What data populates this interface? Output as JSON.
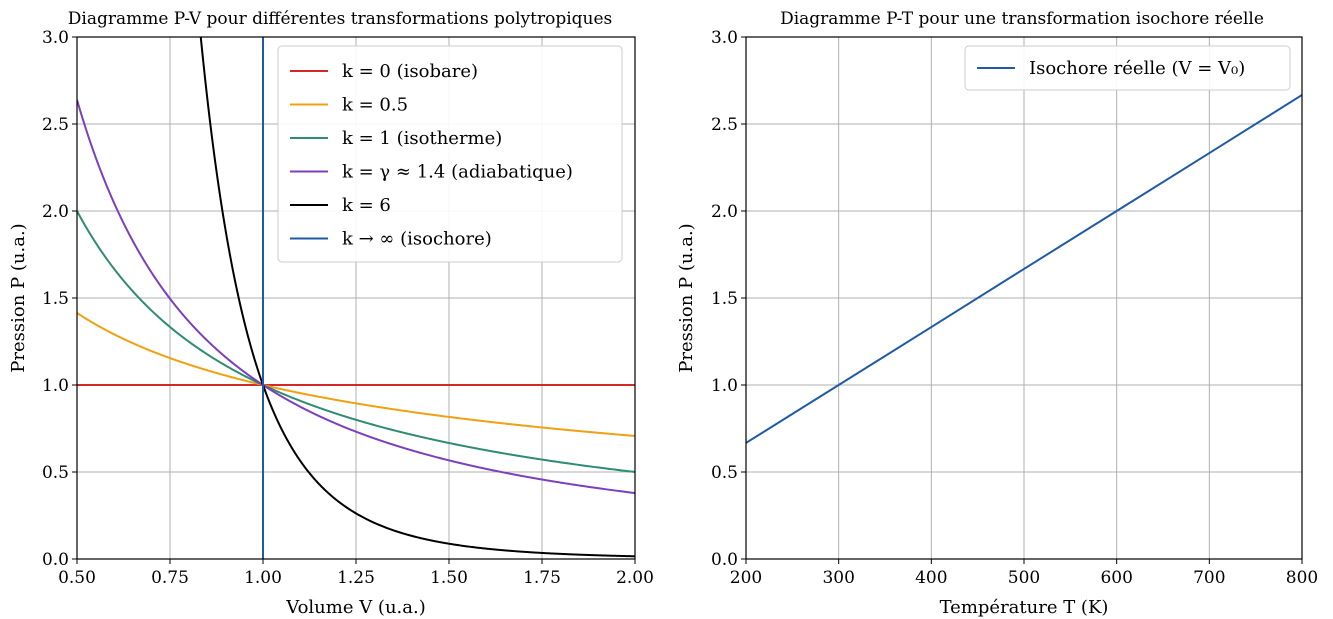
{
  "chart_data": [
    {
      "type": "line",
      "title": "Diagramme P-V pour différentes transformations polytropiques",
      "xlabel": "Volume V (u.a.)",
      "ylabel": "Pression P (u.a.)",
      "xlim": [
        0.5,
        2.0
      ],
      "ylim": [
        0.0,
        3.0
      ],
      "xticks": [
        "0.50",
        "0.75",
        "1.00",
        "1.25",
        "1.50",
        "1.75",
        "2.00"
      ],
      "yticks": [
        "0.0",
        "0.5",
        "1.0",
        "1.5",
        "2.0",
        "2.5",
        "3.0"
      ],
      "grid": true,
      "legend_position": "top-right",
      "reference": {
        "V0": 1.0,
        "P0": 1.0
      },
      "series": [
        {
          "name": "k = 0 (isobare)",
          "k": 0,
          "color": "#d62728",
          "x": [
            0.5,
            0.75,
            1.0,
            1.25,
            1.5,
            1.75,
            2.0
          ],
          "y": [
            1.0,
            1.0,
            1.0,
            1.0,
            1.0,
            1.0,
            1.0
          ]
        },
        {
          "name": "k = 0.5",
          "k": 0.5,
          "color": "#f0a010",
          "x": [
            0.5,
            0.75,
            1.0,
            1.25,
            1.5,
            1.75,
            2.0
          ],
          "y": [
            1.41,
            1.15,
            1.0,
            0.89,
            0.82,
            0.76,
            0.71
          ]
        },
        {
          "name": "k = 1 (isotherme)",
          "k": 1,
          "color": "#2e8b74",
          "x": [
            0.5,
            0.75,
            1.0,
            1.25,
            1.5,
            1.75,
            2.0
          ],
          "y": [
            2.0,
            1.33,
            1.0,
            0.8,
            0.67,
            0.57,
            0.5
          ]
        },
        {
          "name": "k = γ ≈ 1.4 (adiabatique)",
          "k": 1.4,
          "color": "#7b3fbf",
          "x": [
            0.5,
            0.75,
            1.0,
            1.25,
            1.5,
            1.75,
            2.0
          ],
          "y": [
            2.64,
            1.5,
            1.0,
            0.73,
            0.57,
            0.46,
            0.38
          ]
        },
        {
          "name": "k = 6",
          "k": 6,
          "color": "#000000",
          "x": [
            0.83,
            0.9,
            1.0,
            1.25,
            1.5,
            1.75,
            2.0
          ],
          "y": [
            3.06,
            1.88,
            1.0,
            0.26,
            0.09,
            0.035,
            0.016
          ]
        },
        {
          "name": "k → ∞ (isochore)",
          "k": "inf",
          "color": "#1f5aa6",
          "x": [
            1.0,
            1.0
          ],
          "y": [
            0.0,
            3.0
          ]
        }
      ]
    },
    {
      "type": "line",
      "title": "Diagramme P-T pour une transformation isochore réelle",
      "xlabel": "Température T (K)",
      "ylabel": "Pression P (u.a.)",
      "xlim": [
        200,
        800
      ],
      "ylim": [
        0.0,
        3.0
      ],
      "xticks": [
        "200",
        "300",
        "400",
        "500",
        "600",
        "700",
        "800"
      ],
      "yticks": [
        "0.0",
        "0.5",
        "1.0",
        "1.5",
        "2.0",
        "2.5",
        "3.0"
      ],
      "grid": true,
      "legend_position": "top-right",
      "series": [
        {
          "name": "Isochore réelle (V = V₀)",
          "color": "#1f5aa6",
          "x": [
            200,
            300,
            400,
            500,
            600,
            700,
            800
          ],
          "y": [
            0.667,
            1.0,
            1.333,
            1.667,
            2.0,
            2.333,
            2.667
          ]
        }
      ]
    }
  ]
}
